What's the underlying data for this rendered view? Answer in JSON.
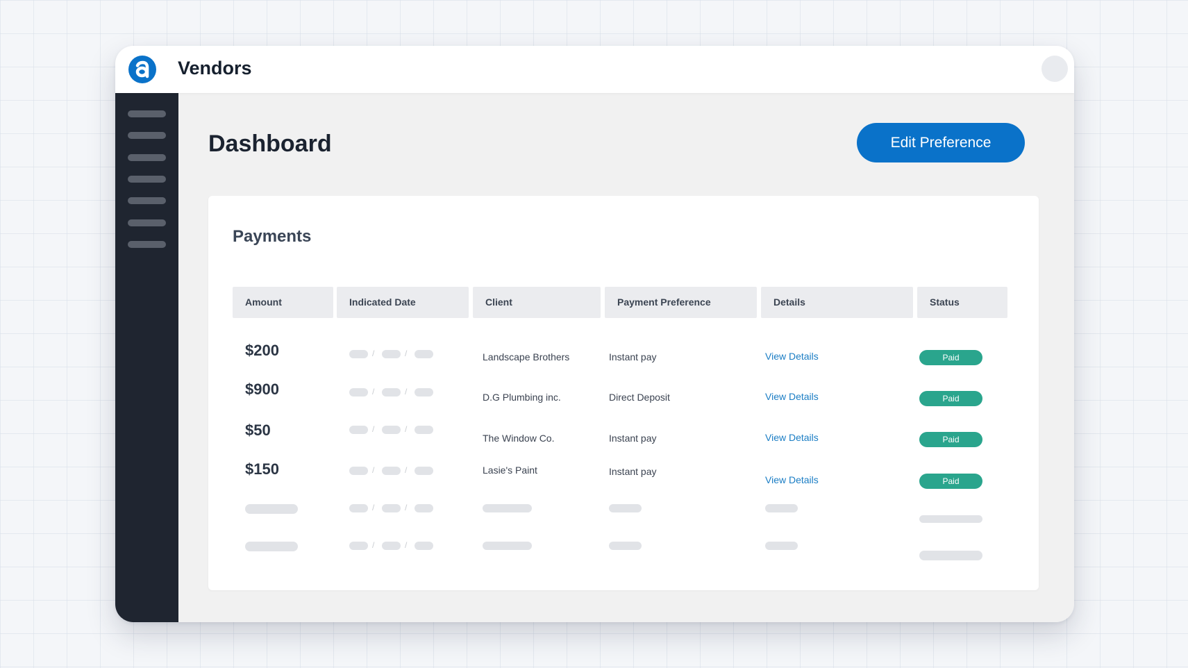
{
  "app": {
    "title": "Vendors"
  },
  "page": {
    "title": "Dashboard",
    "edit_button": "Edit Preference"
  },
  "payments": {
    "title": "Payments",
    "columns": [
      "Amount",
      "Indicated Date",
      "Client",
      "Payment Preference",
      "Details",
      "Status"
    ],
    "rows": [
      {
        "amount": "$200",
        "client": "Landscape Brothers",
        "preference": "Instant pay",
        "details": "View Details",
        "status": "Paid"
      },
      {
        "amount": "$900",
        "client": "D.G Plumbing inc.",
        "preference": "Direct Deposit",
        "details": "View Details",
        "status": "Paid"
      },
      {
        "amount": "$50",
        "client": "The Window Co.",
        "preference": "Instant pay",
        "details": "View Details",
        "status": "Paid"
      },
      {
        "amount": "$150",
        "client": "Lasie's Paint",
        "preference": "Instant pay",
        "details": "View Details",
        "status": "Paid"
      }
    ]
  },
  "colors": {
    "accent": "#0a72c9",
    "sidebar": "#1f2530",
    "status_paid": "#2aa58d",
    "link": "#1a7dc4"
  },
  "icons": {
    "logo": "app-logo-icon"
  }
}
